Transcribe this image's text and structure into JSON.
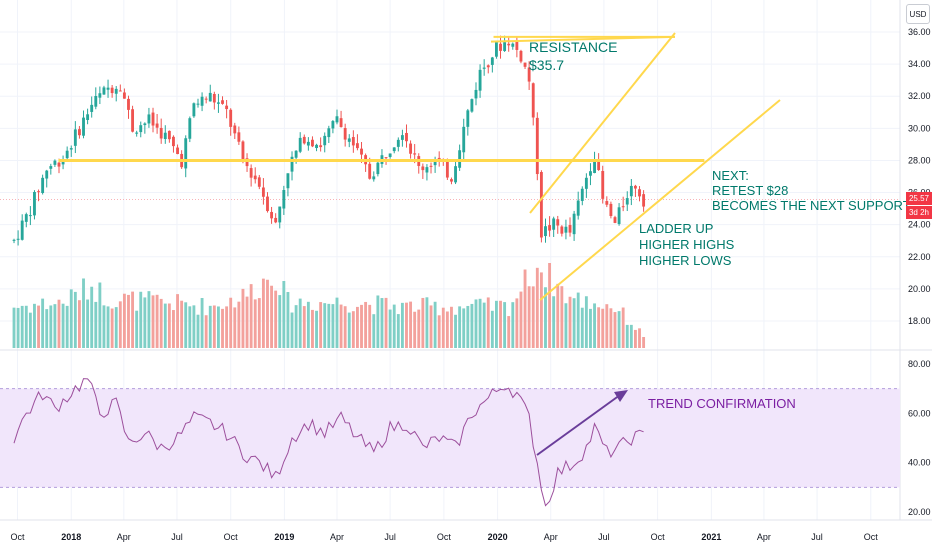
{
  "currency": "USD",
  "price_badge": {
    "last_price": "25.57",
    "countdown": "3d 2h",
    "color": "#f23645"
  },
  "colors": {
    "up": "#26a69a",
    "down": "#ef5350",
    "volume_up": "#7fcfc6",
    "volume_down": "#f3a19c",
    "annotation_line": "#ffd84d",
    "annotation_text": "#00796b",
    "rsi_line": "#9c4f9c",
    "rsi_band": "#f1e6fb",
    "rsi_arrow": "#6a3d9a",
    "rsi_text": "#7b1fa2"
  },
  "annotations": {
    "resistance": [
      "RESISTANCE",
      "$35.7"
    ],
    "next": [
      "NEXT:",
      "RETEST $28",
      "BECOMES THE NEXT SUPPORT"
    ],
    "ladder": [
      "LADDER UP",
      "HIGHER HIGHS",
      "HIGHER LOWS"
    ],
    "rsi": "TREND CONFIRMATION"
  },
  "chart_data": [
    {
      "type": "candlestick",
      "title": "",
      "interval": "weekly",
      "x_ticks": [
        "Oct",
        "2018",
        "Apr",
        "Jul",
        "Oct",
        "2019",
        "Apr",
        "Jul",
        "Oct",
        "2020",
        "Apr",
        "Jul",
        "Oct",
        "2021",
        "Apr",
        "Jul",
        "Oct"
      ],
      "x_range": [
        "2017-09",
        "2021-11"
      ],
      "y_ticks": [
        "18.00",
        "20.00",
        "22.00",
        "24.00",
        "26.00",
        "28.00",
        "30.00",
        "32.00",
        "34.00",
        "36.00"
      ],
      "ylim": [
        16.5,
        36.3
      ],
      "grid": true,
      "levels": [
        {
          "label": "Resistance",
          "value": 35.7
        },
        {
          "label": "Support retest",
          "value": 28.0
        }
      ],
      "close_path": [
        [
          "2017-09-25",
          23.0
        ],
        [
          "2017-10-23",
          25.0
        ],
        [
          "2017-11-20",
          27.5
        ],
        [
          "2017-12-18",
          28.2
        ],
        [
          "2018-01-15",
          30.0
        ],
        [
          "2018-02-05",
          31.5
        ],
        [
          "2018-03-05",
          32.5
        ],
        [
          "2018-03-26",
          32.8
        ],
        [
          "2018-04-16",
          30.0
        ],
        [
          "2018-05-14",
          30.5
        ],
        [
          "2018-06-11",
          29.5
        ],
        [
          "2018-07-09",
          28.0
        ],
        [
          "2018-07-30",
          31.5
        ],
        [
          "2018-08-27",
          32.0
        ],
        [
          "2018-09-24",
          31.0
        ],
        [
          "2018-10-22",
          28.0
        ],
        [
          "2018-11-19",
          26.5
        ],
        [
          "2018-12-17",
          24.0
        ],
        [
          "2019-01-07",
          27.5
        ],
        [
          "2019-02-04",
          29.5
        ],
        [
          "2019-03-04",
          29.0
        ],
        [
          "2019-04-01",
          30.5
        ],
        [
          "2019-04-29",
          29.0
        ],
        [
          "2019-05-27",
          27.0
        ],
        [
          "2019-06-24",
          28.5
        ],
        [
          "2019-07-22",
          30.0
        ],
        [
          "2019-08-19",
          27.5
        ],
        [
          "2019-09-16",
          28.0
        ],
        [
          "2019-10-14",
          27.0
        ],
        [
          "2019-11-11",
          31.0
        ],
        [
          "2019-12-02",
          33.5
        ],
        [
          "2019-12-30",
          35.0
        ],
        [
          "2020-01-20",
          35.5
        ],
        [
          "2020-02-10",
          34.5
        ],
        [
          "2020-02-24",
          33.0
        ],
        [
          "2020-03-09",
          27.5
        ],
        [
          "2020-03-16",
          23.5
        ],
        [
          "2020-04-06",
          24.0
        ],
        [
          "2020-05-04",
          23.5
        ],
        [
          "2020-06-01",
          27.0
        ],
        [
          "2020-06-15",
          28.5
        ],
        [
          "2020-06-29",
          25.5
        ],
        [
          "2020-07-20",
          24.0
        ],
        [
          "2020-08-10",
          26.0
        ],
        [
          "2020-08-24",
          26.5
        ],
        [
          "2020-09-07",
          25.57
        ]
      ]
    },
    {
      "type": "bar",
      "title": "",
      "series": [
        {
          "name": "",
          "note": "volume bars, relative height"
        }
      ],
      "volume_path": [
        [
          "2017-09-25",
          0.5
        ],
        [
          "2017-12-18",
          0.55
        ],
        [
          "2018-02-05",
          0.75
        ],
        [
          "2018-03-05",
          0.6
        ],
        [
          "2018-06-11",
          0.55
        ],
        [
          "2018-08-27",
          0.5
        ],
        [
          "2018-10-22",
          0.62
        ],
        [
          "2018-12-17",
          0.9
        ],
        [
          "2019-01-07",
          0.55
        ],
        [
          "2019-04-29",
          0.55
        ],
        [
          "2019-07-22",
          0.5
        ],
        [
          "2019-10-14",
          0.5
        ],
        [
          "2020-01-20",
          0.5
        ],
        [
          "2020-03-09",
          1.0
        ],
        [
          "2020-03-16",
          0.95
        ],
        [
          "2020-05-04",
          0.6
        ],
        [
          "2020-07-20",
          0.5
        ],
        [
          "2020-09-07",
          0.15
        ]
      ]
    },
    {
      "type": "line",
      "title": "",
      "y_ticks": [
        "20.00",
        "40.00",
        "60.00",
        "80.00"
      ],
      "ylim": [
        15,
        85
      ],
      "bands": [
        30,
        70
      ],
      "rsi_path": [
        [
          "2017-09-25",
          50
        ],
        [
          "2017-10-16",
          60
        ],
        [
          "2017-11-13",
          68
        ],
        [
          "2017-12-04",
          62
        ],
        [
          "2018-01-08",
          70
        ],
        [
          "2018-01-29",
          74
        ],
        [
          "2018-02-19",
          60
        ],
        [
          "2018-03-19",
          64
        ],
        [
          "2018-04-09",
          48
        ],
        [
          "2018-05-07",
          52
        ],
        [
          "2018-06-04",
          46
        ],
        [
          "2018-07-02",
          50
        ],
        [
          "2018-07-30",
          58
        ],
        [
          "2018-08-27",
          56
        ],
        [
          "2018-09-24",
          52
        ],
        [
          "2018-10-22",
          44
        ],
        [
          "2018-11-19",
          40
        ],
        [
          "2018-12-17",
          34
        ],
        [
          "2019-01-14",
          50
        ],
        [
          "2019-02-11",
          56
        ],
        [
          "2019-03-11",
          52
        ],
        [
          "2019-04-08",
          58
        ],
        [
          "2019-05-06",
          50
        ],
        [
          "2019-06-03",
          44
        ],
        [
          "2019-07-01",
          54
        ],
        [
          "2019-07-29",
          56
        ],
        [
          "2019-08-26",
          46
        ],
        [
          "2019-09-23",
          50
        ],
        [
          "2019-10-21",
          46
        ],
        [
          "2019-11-18",
          60
        ],
        [
          "2019-12-16",
          66
        ],
        [
          "2020-01-13",
          72
        ],
        [
          "2020-02-03",
          68
        ],
        [
          "2020-02-24",
          58
        ],
        [
          "2020-03-09",
          40
        ],
        [
          "2020-03-23",
          22
        ],
        [
          "2020-04-13",
          36
        ],
        [
          "2020-05-11",
          40
        ],
        [
          "2020-06-01",
          46
        ],
        [
          "2020-06-15",
          54
        ],
        [
          "2020-07-06",
          44
        ],
        [
          "2020-07-27",
          46
        ],
        [
          "2020-08-17",
          50
        ],
        [
          "2020-09-07",
          51
        ]
      ]
    }
  ]
}
